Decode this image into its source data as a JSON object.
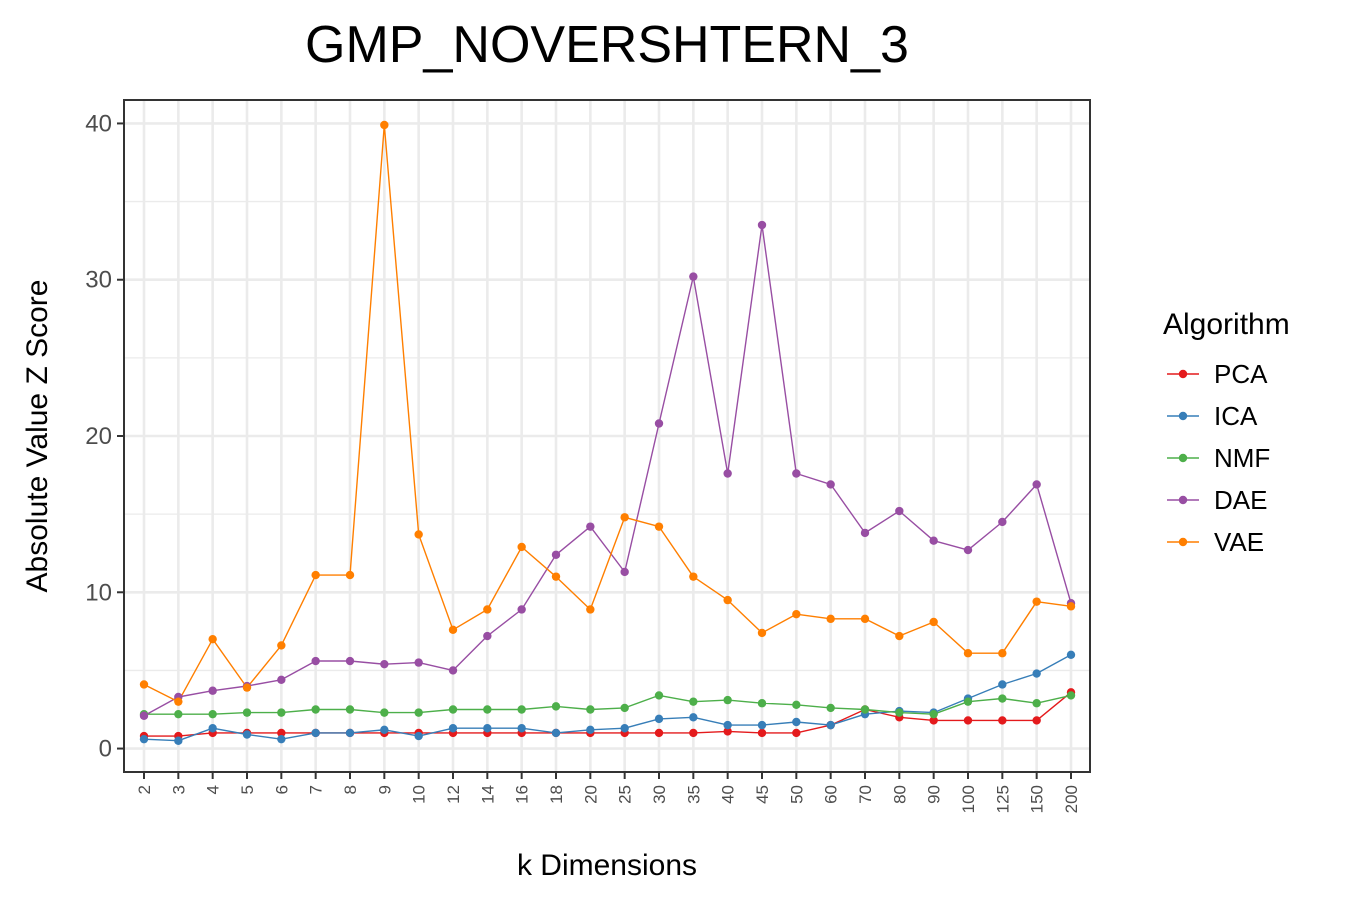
{
  "chart_data": {
    "type": "line",
    "title": "GMP_NOVERSHTERN_3",
    "xlabel": "k Dimensions",
    "ylabel": "Absolute Value Z Score",
    "ylim": [
      -1.5,
      41.5
    ],
    "yticks": [
      0,
      10,
      20,
      30,
      40
    ],
    "grid": true,
    "legend": {
      "title": "Algorithm",
      "position": "right"
    },
    "categories": [
      "2",
      "3",
      "4",
      "5",
      "6",
      "7",
      "8",
      "9",
      "10",
      "12",
      "14",
      "16",
      "18",
      "20",
      "25",
      "30",
      "35",
      "40",
      "45",
      "50",
      "60",
      "70",
      "80",
      "90",
      "100",
      "125",
      "150",
      "200"
    ],
    "series": [
      {
        "name": "PCA",
        "color": "#e41a1c",
        "values": [
          0.8,
          0.8,
          1.0,
          1.0,
          1.0,
          1.0,
          1.0,
          1.0,
          1.0,
          1.0,
          1.0,
          1.0,
          1.0,
          1.0,
          1.0,
          1.0,
          1.0,
          1.1,
          1.0,
          1.0,
          1.5,
          2.5,
          2.0,
          1.8,
          1.8,
          1.8,
          1.8,
          3.6
        ]
      },
      {
        "name": "ICA",
        "color": "#377eb8",
        "values": [
          0.6,
          0.5,
          1.3,
          0.9,
          0.6,
          1.0,
          1.0,
          1.2,
          0.8,
          1.3,
          1.3,
          1.3,
          1.0,
          1.2,
          1.3,
          1.9,
          2.0,
          1.5,
          1.5,
          1.7,
          1.5,
          2.2,
          2.4,
          2.3,
          3.2,
          4.1,
          4.8,
          6.0
        ]
      },
      {
        "name": "NMF",
        "color": "#4daf4a",
        "values": [
          2.2,
          2.2,
          2.2,
          2.3,
          2.3,
          2.5,
          2.5,
          2.3,
          2.3,
          2.5,
          2.5,
          2.5,
          2.7,
          2.5,
          2.6,
          3.4,
          3.0,
          3.1,
          2.9,
          2.8,
          2.6,
          2.5,
          2.3,
          2.2,
          3.0,
          3.2,
          2.9,
          3.4
        ]
      },
      {
        "name": "DAE",
        "color": "#984ea3",
        "values": [
          2.1,
          3.3,
          3.7,
          4.0,
          4.4,
          5.6,
          5.6,
          5.4,
          5.5,
          5.0,
          7.2,
          8.9,
          12.4,
          14.2,
          11.3,
          20.8,
          30.2,
          17.6,
          33.5,
          17.6,
          16.9,
          13.8,
          15.2,
          13.3,
          12.7,
          14.5,
          16.9,
          9.3
        ]
      },
      {
        "name": "VAE",
        "color": "#ff7f00",
        "values": [
          4.1,
          3.0,
          7.0,
          3.9,
          6.6,
          11.1,
          11.1,
          39.9,
          13.7,
          7.6,
          8.9,
          12.9,
          11.0,
          8.9,
          14.8,
          14.2,
          11.0,
          9.5,
          7.4,
          8.6,
          8.3,
          8.3,
          7.2,
          8.1,
          6.1,
          6.1,
          9.4,
          9.1
        ]
      }
    ]
  }
}
